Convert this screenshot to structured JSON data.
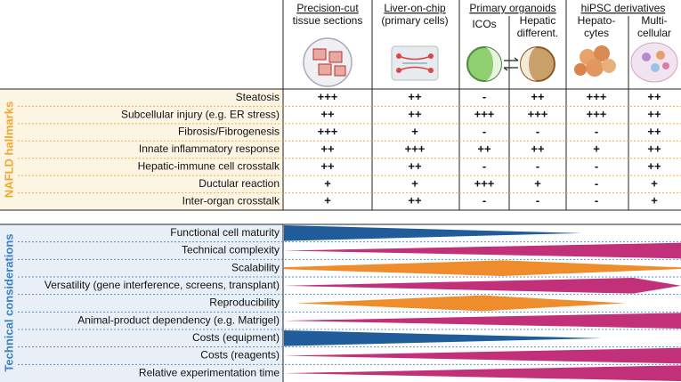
{
  "header": {
    "groups": [
      {
        "title": "Precision-cut",
        "columns": [
          {
            "lines": [
              "tissue sections"
            ]
          }
        ]
      },
      {
        "title": "Liver-on-chip",
        "columns": [
          {
            "lines": [
              "(primary cells)"
            ]
          }
        ]
      },
      {
        "title": "Primary organoids",
        "columns": [
          {
            "lines": [
              "ICOs"
            ]
          },
          {
            "lines": [
              "Hepatic",
              "different."
            ]
          }
        ]
      },
      {
        "title": "hiPSC derivatives",
        "columns": [
          {
            "lines": [
              "Hepato-",
              "cytes"
            ]
          },
          {
            "lines": [
              "Multi-",
              "cellular"
            ]
          }
        ]
      }
    ]
  },
  "sections": [
    {
      "title": "NAFLD hallmarks",
      "rows": [
        {
          "label": "Steatosis",
          "cells": [
            "+++",
            "++",
            "-",
            "++",
            "+++",
            "++"
          ]
        },
        {
          "label": "Subcellular injury (e.g. ER stress)",
          "cells": [
            "++",
            "++",
            "+++",
            "+++",
            "+++",
            "++"
          ]
        },
        {
          "label": "Fibrosis/Fibrogenesis",
          "cells": [
            "+++",
            "+",
            "-",
            "-",
            "-",
            "++"
          ]
        },
        {
          "label": "Innate inflammatory response",
          "cells": [
            "++",
            "+++",
            "++",
            "++",
            "+",
            "++"
          ]
        },
        {
          "label": "Hepatic-immune cell crosstalk",
          "cells": [
            "++",
            "++",
            "-",
            "-",
            "-",
            "++"
          ]
        },
        {
          "label": "Ductular reaction",
          "cells": [
            "+",
            "+",
            "+++",
            "+",
            "-",
            "+"
          ]
        },
        {
          "label": "Inter-organ crosstalk",
          "cells": [
            "+",
            "++",
            "-",
            "-",
            "-",
            "+"
          ]
        }
      ]
    },
    {
      "title": "Technical considerations",
      "rows": [
        {
          "label": "Functional cell maturity"
        },
        {
          "label": "Technical complexity"
        },
        {
          "label": "Scalability"
        },
        {
          "label": "Versatility (gene interference, screens, transplant)"
        },
        {
          "label": "Reproducibility"
        },
        {
          "label": "Animal-product dependency (e.g. Matrigel)"
        },
        {
          "label": "Costs (equipment)"
        },
        {
          "label": "Costs (reagents)"
        },
        {
          "label": "Relative experimentation time"
        }
      ]
    }
  ]
}
